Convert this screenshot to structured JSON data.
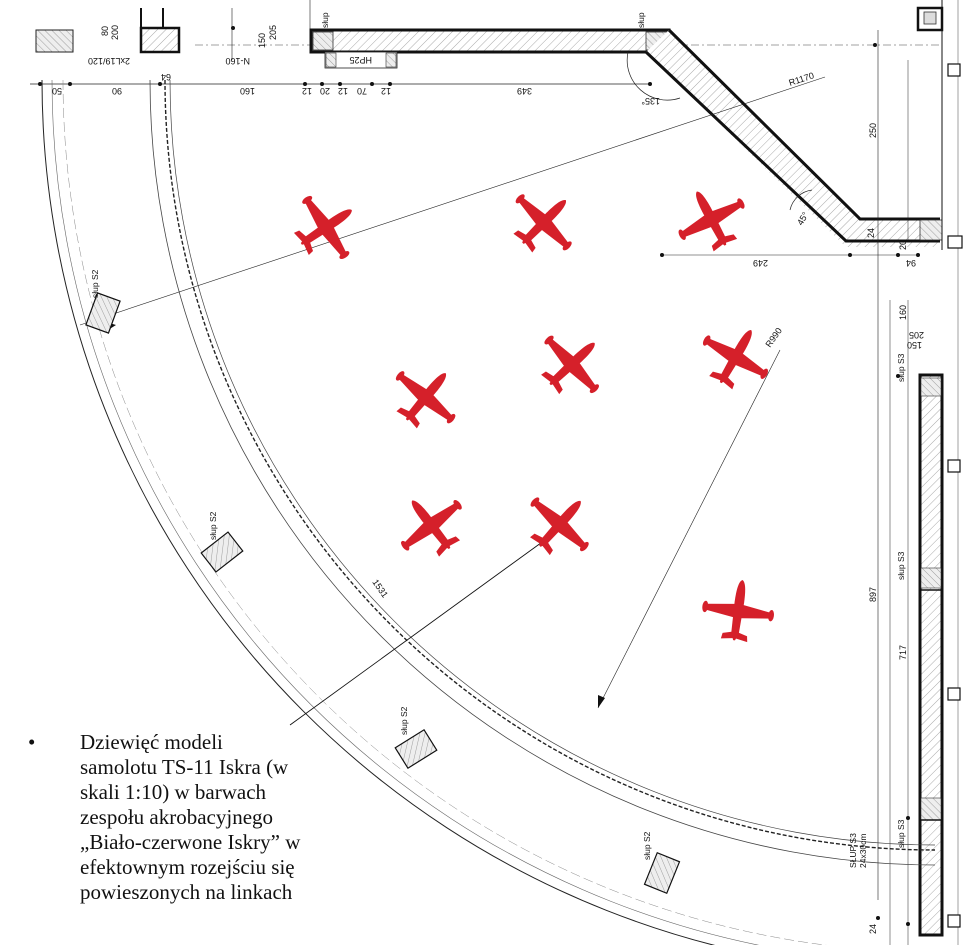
{
  "dimensions": {
    "d80": "80",
    "d200": "200",
    "d2x": "2xL19/120",
    "d150": "150",
    "d205": "205",
    "n160": "N-160",
    "d50": "50",
    "d90": "90",
    "d64": "64",
    "d160": "160",
    "d12a": "12",
    "d20": "20",
    "d12b": "12",
    "d70": "70",
    "d12c": "12",
    "d349": "349",
    "a135": "135°",
    "r1170": "R1170",
    "d250": "250",
    "a45": "45°",
    "d24a": "24",
    "d20b": "20",
    "d249": "249",
    "d94": "94",
    "d160b": "160",
    "d205b": "205",
    "d150b": "150",
    "r990": "R990",
    "d1531": "1531",
    "d897": "897",
    "d717": "717",
    "d24b": "24",
    "hp25": "HP25"
  },
  "labels": {
    "slup": "słup",
    "slupS2": "słup S2",
    "slupS3": "słup S3",
    "slupS3caps": "SŁUP S3",
    "slupS3size": "24x30cm"
  },
  "caption": {
    "bullet": "•",
    "text": "Dziewięć modeli samolotu TS-11 Iskra (w skali 1:10) w barwach  zespołu akrobacyjnego „Biało-czerwone Iskry” w efektownym rozejściu się powieszonych na linkach"
  },
  "colors": {
    "plane": "#d5202a",
    "line": "#111111",
    "hatch": "#999999"
  }
}
